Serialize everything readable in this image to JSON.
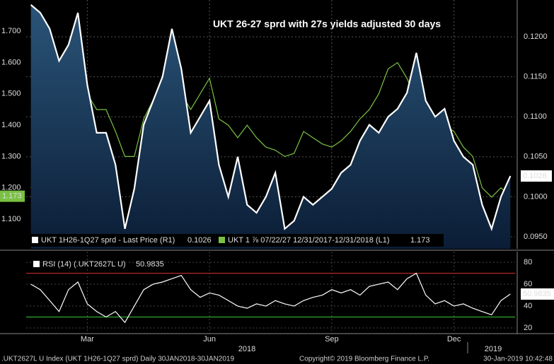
{
  "chart_data": [
    {
      "type": "line",
      "title": "UKT 26-27 sprd with 27s yields adjusted 30 days",
      "grid": true,
      "legend": "bottom-left",
      "categories": [
        null,
        null,
        null,
        null,
        null,
        null,
        "Mar",
        null,
        null,
        null,
        null,
        null,
        null,
        null,
        null,
        null,
        null,
        null,
        null,
        "Jun",
        null,
        null,
        null,
        null,
        null,
        null,
        null,
        null,
        null,
        null,
        null,
        null,
        "Sep",
        null,
        null,
        null,
        null,
        null,
        null,
        null,
        null,
        null,
        null,
        null,
        null,
        "Dec",
        null,
        null,
        null,
        null,
        null,
        null
      ],
      "ylim": [
        1.005,
        1.8
      ],
      "yticks": [
        {
          "value": 1.1,
          "label": "1.100"
        },
        {
          "value": 1.2,
          "label": "1.200"
        },
        {
          "value": 1.3,
          "label": "1.300"
        },
        {
          "value": 1.4,
          "label": "1.400"
        },
        {
          "value": 1.5,
          "label": "1.500"
        },
        {
          "value": 1.6,
          "label": "1.600"
        },
        {
          "value": 1.7,
          "label": "1.700"
        }
      ],
      "y2lim": [
        0.0935,
        0.1246
      ],
      "y2ticks": [
        {
          "value": 0.095,
          "label": "0.0950"
        },
        {
          "value": 0.1,
          "label": "0.1000"
        },
        {
          "value": 0.105,
          "label": "0.1050"
        },
        {
          "value": 0.11,
          "label": "0.1100"
        },
        {
          "value": 0.115,
          "label": "0.1150"
        },
        {
          "value": 0.12,
          "label": "0.1200"
        }
      ],
      "series": [
        {
          "name": "UKT 1H26-1Q27 sprd - Last Price (R1)",
          "color": "#ffffff",
          "style": "area",
          "axis": "y2",
          "values": [
            0.124,
            0.123,
            0.121,
            0.117,
            0.119,
            0.123,
            0.114,
            0.108,
            0.108,
            0.104,
            0.096,
            0.101,
            0.109,
            0.112,
            0.115,
            0.121,
            0.116,
            0.108,
            0.11,
            0.112,
            0.104,
            0.1,
            0.105,
            0.099,
            0.098,
            0.1,
            0.103,
            0.096,
            0.097,
            0.1,
            0.099,
            0.1,
            0.101,
            0.103,
            0.104,
            0.107,
            0.109,
            0.108,
            0.11,
            0.111,
            0.113,
            0.118,
            0.112,
            0.11,
            0.111,
            0.107,
            0.105,
            0.104,
            0.099,
            0.096,
            0.1,
            0.1026
          ]
        },
        {
          "name": "UKT 1 ⅞ 07/22/27 12/31/2017-12/31/2018 (L1)",
          "color": "#7ac143",
          "style": "line",
          "values": [
            1.2,
            1.25,
            1.33,
            1.38,
            1.55,
            1.6,
            1.5,
            1.45,
            1.45,
            1.38,
            1.3,
            1.3,
            1.42,
            1.48,
            1.52,
            1.55,
            1.5,
            1.45,
            1.5,
            1.55,
            1.42,
            1.4,
            1.36,
            1.4,
            1.36,
            1.33,
            1.32,
            1.3,
            1.31,
            1.38,
            1.36,
            1.34,
            1.33,
            1.35,
            1.38,
            1.42,
            1.45,
            1.5,
            1.58,
            1.6,
            1.55,
            1.48,
            1.38,
            1.3,
            1.4,
            1.38,
            1.33,
            1.3,
            1.2,
            1.17,
            1.2,
            1.173
          ]
        }
      ]
    },
    {
      "type": "line",
      "legend": "top-left",
      "categories": [
        null,
        null,
        null,
        null,
        null,
        null,
        "Mar",
        null,
        null,
        null,
        null,
        null,
        null,
        null,
        null,
        null,
        null,
        null,
        null,
        "Jun",
        null,
        null,
        null,
        null,
        null,
        null,
        null,
        null,
        null,
        null,
        null,
        null,
        "Sep",
        null,
        null,
        null,
        null,
        null,
        null,
        null,
        null,
        null,
        null,
        null,
        null,
        "Dec",
        null,
        null,
        null,
        null,
        null,
        null
      ],
      "years": [
        "2018",
        "2019"
      ],
      "ylim": [
        14.8,
        89.8
      ],
      "yticks": [
        20,
        40,
        60,
        80
      ],
      "hlines": [
        {
          "value": 70,
          "color": "#e03030"
        },
        {
          "value": 30,
          "color": "#3cc43c"
        }
      ],
      "series": [
        {
          "name": "RSI (14) (.UKT2627L U)",
          "color": "#ffffff",
          "values": [
            60,
            55,
            45,
            35,
            55,
            62,
            42,
            35,
            30,
            35,
            25,
            40,
            55,
            60,
            62,
            65,
            68,
            55,
            48,
            52,
            50,
            45,
            40,
            38,
            42,
            40,
            45,
            42,
            40,
            45,
            48,
            50,
            55,
            52,
            55,
            50,
            58,
            60,
            62,
            55,
            65,
            70,
            50,
            42,
            45,
            40,
            42,
            38,
            35,
            32,
            45,
            50.9835
          ]
        }
      ]
    }
  ],
  "footer": {
    "left": ".UKT2627L U Index (UKT 1H26-1Q27 sprd)  Daily 30JAN2018-30JAN2019",
    "center": "Copyright© 2019 Bloomberg Finance L.P.",
    "right": "30-Jan-2019 10:42:48"
  }
}
